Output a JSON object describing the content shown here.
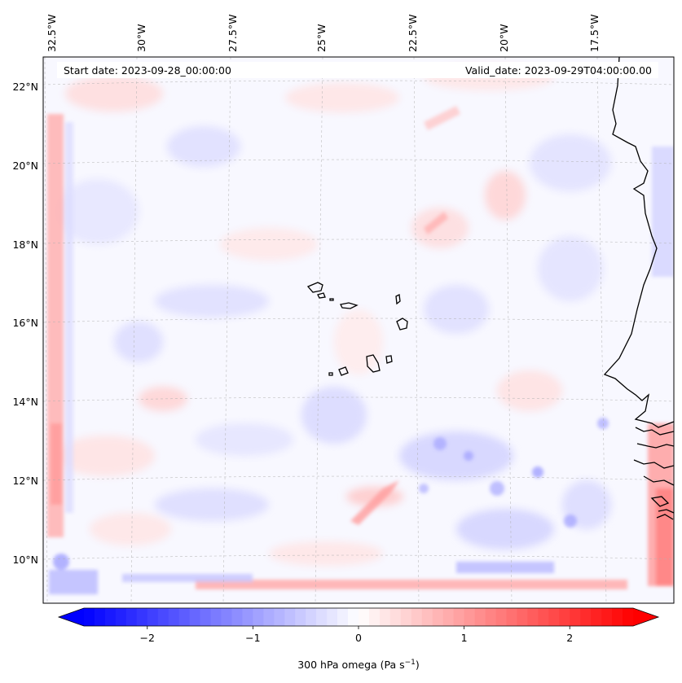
{
  "header": {
    "start_date": "Start date: 2023-09-28_00:00:00",
    "valid_date": "Valid_date: 2023-09-29T04:00:00.00"
  },
  "map": {
    "lon_labels": [
      "32.5°W",
      "30°W",
      "27.5°W",
      "25°W",
      "22.5°W",
      "20°W",
      "17.5°W"
    ],
    "lat_labels": [
      "22°N",
      "20°N",
      "18°N",
      "16°N",
      "14°N",
      "12°N",
      "10°N"
    ],
    "gridlines": true,
    "field": "300 hPa omega"
  },
  "colorbar": {
    "label": "300 hPa omega (Pa s",
    "label_sup": "−1",
    "label_end": ")",
    "ticks": [
      "−2",
      "−1",
      "0",
      "1",
      "2"
    ],
    "tick_values": [
      -2,
      -1,
      0,
      1,
      2
    ],
    "range": [
      -2.6,
      2.6
    ],
    "colormap": "bwr",
    "extend": "both",
    "colors": {
      "min": "#0000ff",
      "mid": "#ffffff",
      "max": "#ff0000"
    }
  }
}
